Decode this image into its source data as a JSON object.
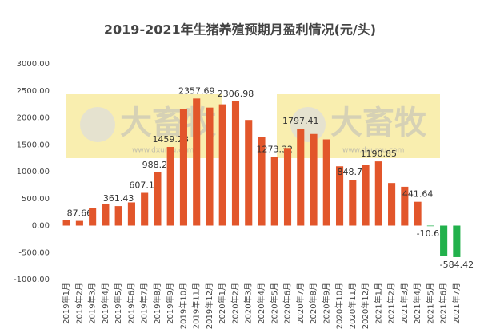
{
  "chart_data": {
    "type": "bar",
    "title": "2019-2021年生猪养殖预期月盈利情况(元/头)",
    "watermark": {
      "text": "大畜牧",
      "url": "www.dxumu.com"
    },
    "categories": [
      "2019年1月",
      "2019年2月",
      "2019年3月",
      "2019年4月",
      "2019年5月",
      "2019年6月",
      "2019年7月",
      "2019年8月",
      "2019年9月",
      "2019年10月",
      "2019年11月",
      "2019年12月",
      "2020年1月",
      "2020年2月",
      "2020年3月",
      "2020年4月",
      "2020年5月",
      "2020年6月",
      "2020年7月",
      "2020年8月",
      "2020年9月",
      "2020年10月",
      "2020年11月",
      "2020年12月",
      "2021年1月",
      "2021年2月",
      "2021年3月",
      "2021年4月",
      "2021年5月",
      "2021年6月",
      "2021年7月"
    ],
    "values": [
      100,
      87.66,
      320,
      400,
      361.43,
      430,
      607.11,
      988.27,
      1459.28,
      2170,
      2357.69,
      2190,
      2250,
      2306.98,
      1960,
      1640,
      1273.32,
      1440,
      1797.41,
      1700,
      1600,
      1100,
      848.7,
      1130,
      1190.85,
      790,
      720,
      441.64,
      -10.65,
      -560,
      -584.42
    ],
    "value_labels": [
      null,
      "87.66",
      null,
      null,
      "361.43",
      null,
      "607.11",
      "988.27",
      "1459.28",
      null,
      "2357.69",
      null,
      null,
      "2306.98",
      null,
      null,
      "1273.32",
      null,
      "1797.41",
      null,
      null,
      null,
      "848.70",
      null,
      "1190.85",
      null,
      null,
      "441.64",
      "-10.65",
      null,
      "-584.42"
    ],
    "color": "#e2562b",
    "negative_color": "#22b14c",
    "ylim": [
      -1000,
      3000
    ],
    "yticks": [
      {
        "value": -1000,
        "label": "-1000.00"
      },
      {
        "value": -500,
        "label": "-500.00"
      },
      {
        "value": 0,
        "label": "0.00"
      },
      {
        "value": 500,
        "label": "500.00"
      },
      {
        "value": 1000,
        "label": "1000.00"
      },
      {
        "value": 1500,
        "label": "1500.00"
      },
      {
        "value": 2000,
        "label": "2000.00"
      },
      {
        "value": 2500,
        "label": "2500.00"
      },
      {
        "value": 3000,
        "label": "3000.00"
      }
    ],
    "grid": false
  }
}
